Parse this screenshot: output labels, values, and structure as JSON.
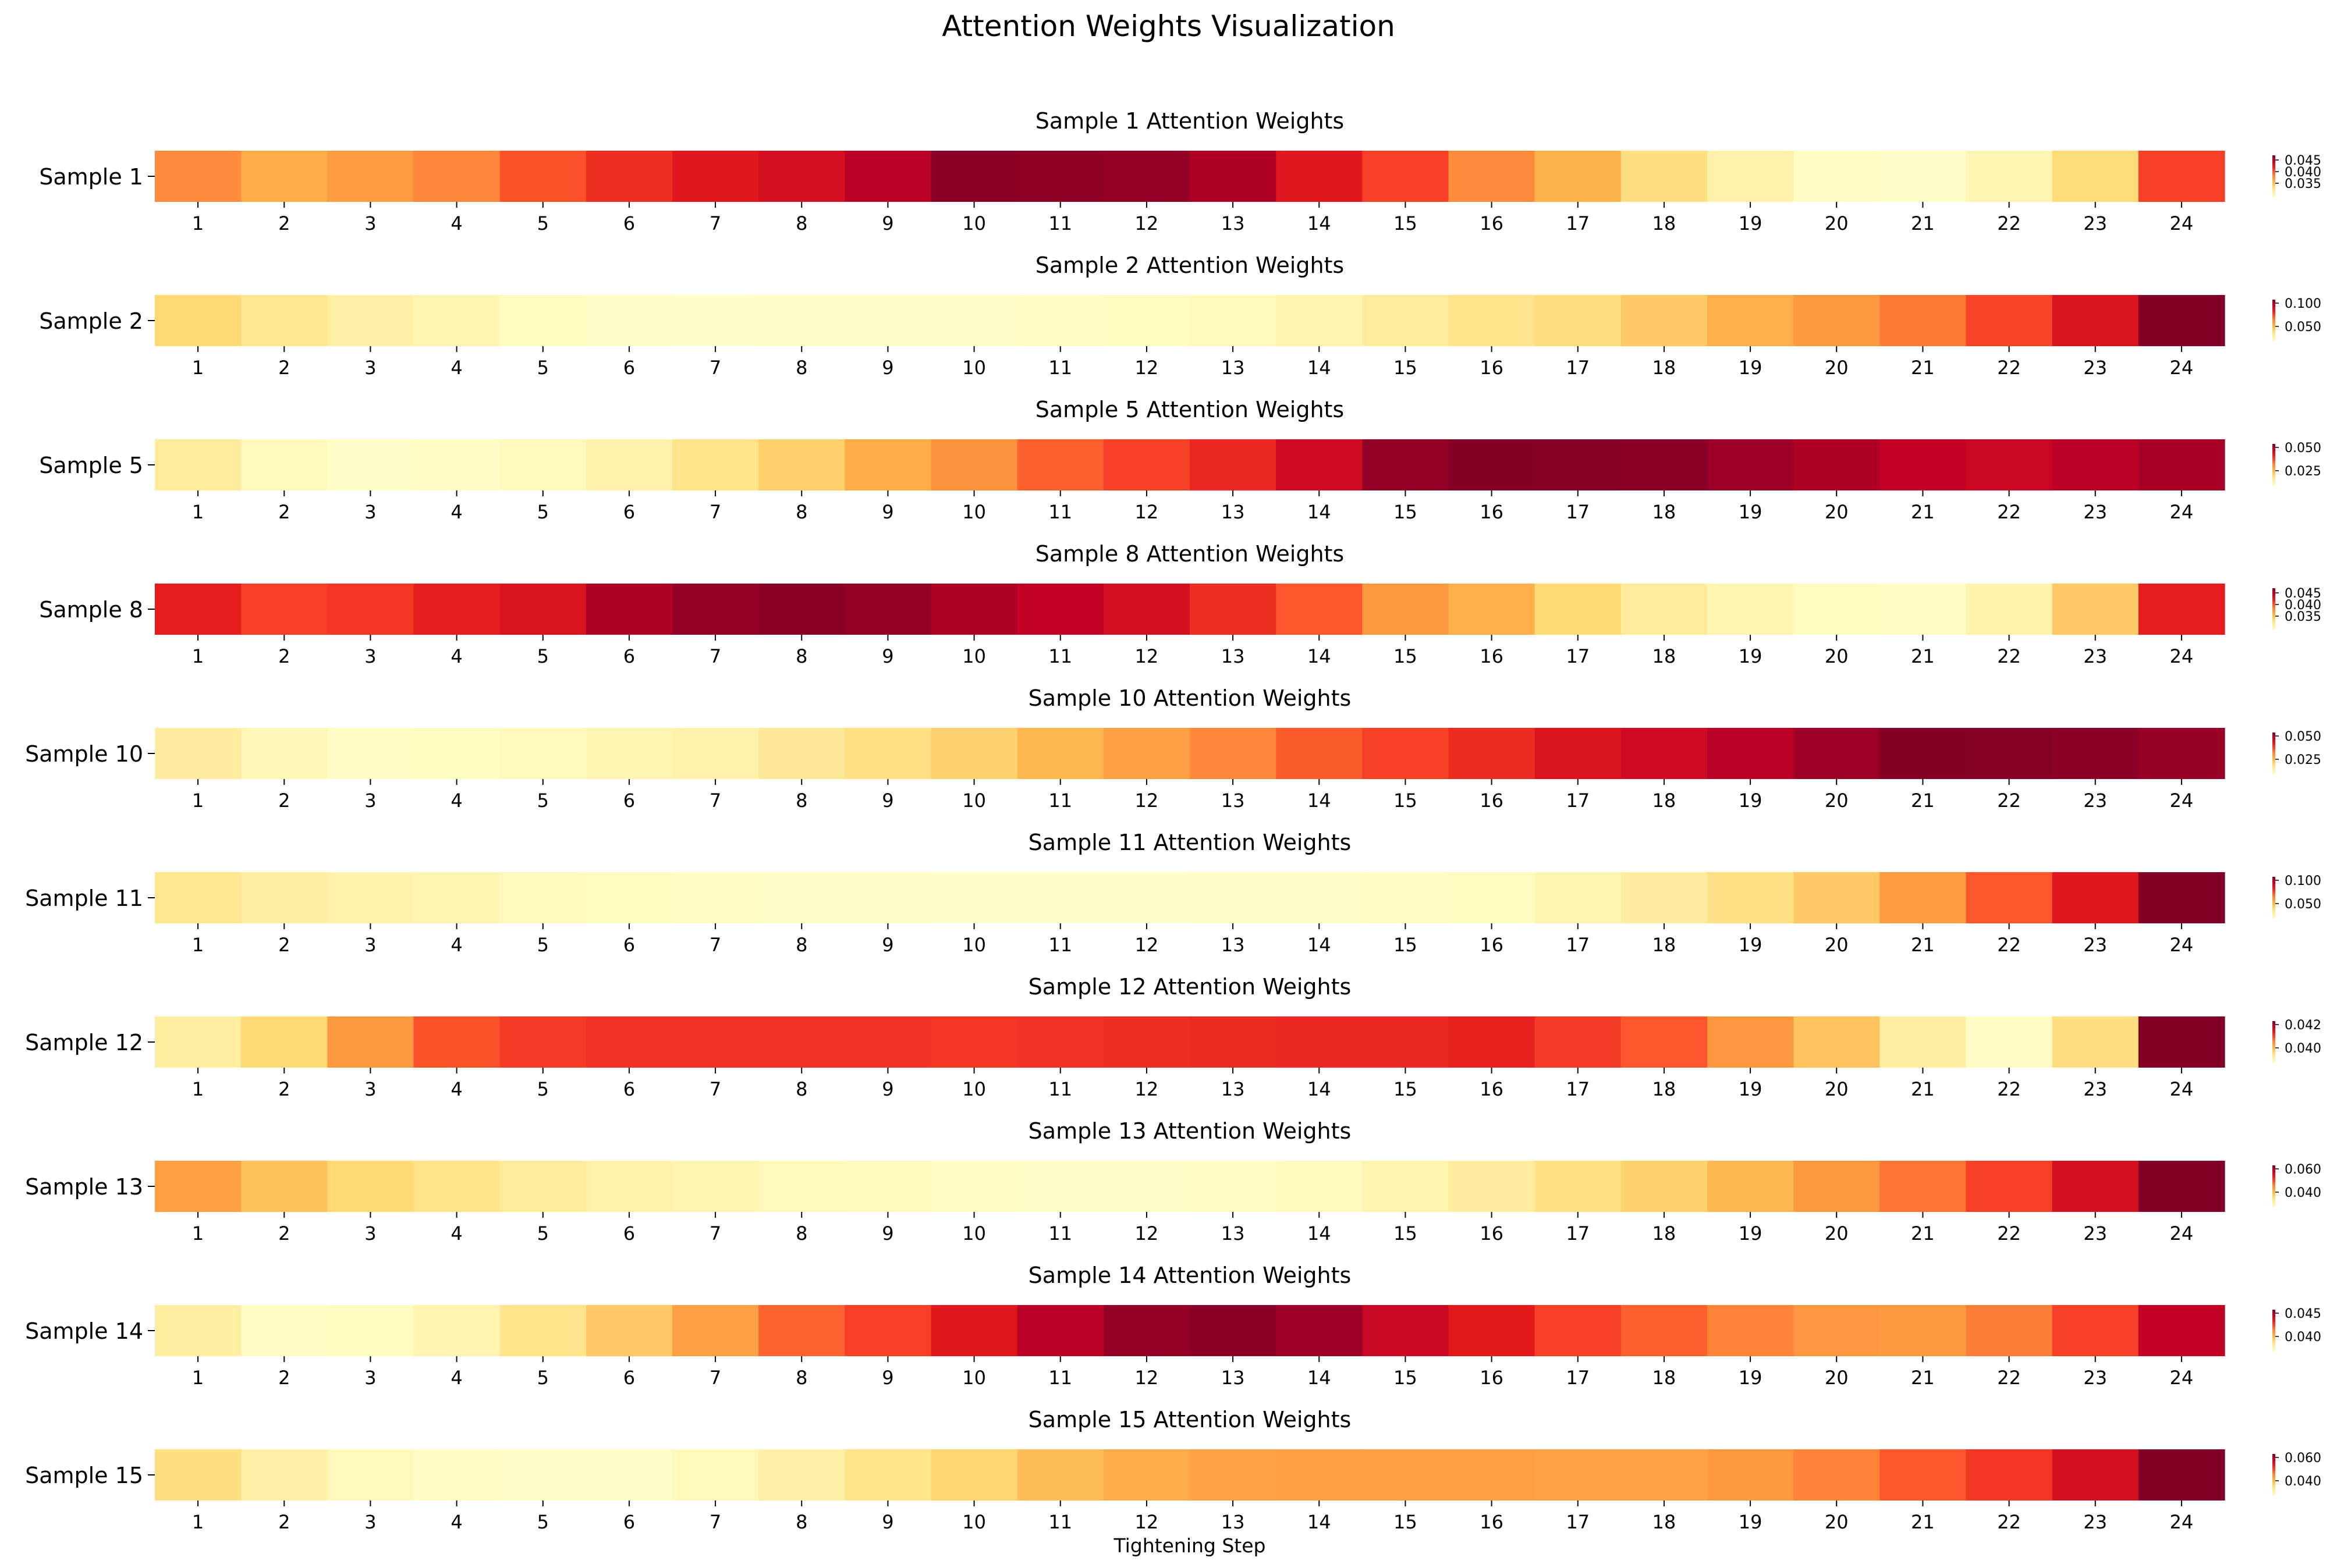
{
  "title": "Attention Weights Visualization",
  "chart_data": {
    "type": "heatmap",
    "title": "Attention Weights Visualization",
    "xlabel": "Tightening Step",
    "x_categories": [
      "1",
      "2",
      "3",
      "4",
      "5",
      "6",
      "7",
      "8",
      "9",
      "10",
      "11",
      "12",
      "13",
      "14",
      "15",
      "16",
      "17",
      "18",
      "19",
      "20",
      "21",
      "22",
      "23",
      "24"
    ],
    "colormap": "YlOrRd",
    "colorscale_stops": [
      "#ffffcc",
      "#ffeda0",
      "#fed976",
      "#feb24c",
      "#fd8d3c",
      "#fc4e2a",
      "#e31a1c",
      "#bd0026",
      "#800026"
    ],
    "rows": [
      {
        "label": "Sample 1",
        "subtitle": "Sample 1 Attention Weights",
        "intensity": [
          0.5,
          0.4,
          0.45,
          0.51,
          0.62,
          0.7,
          0.76,
          0.8,
          0.88,
          0.98,
          0.97,
          0.96,
          0.9,
          0.76,
          0.66,
          0.5,
          0.37,
          0.22,
          0.1,
          0.02,
          0.01,
          0.07,
          0.24,
          0.66
        ],
        "colorbar_ticks": [
          "0.045",
          "0.040",
          "0.035"
        ]
      },
      {
        "label": "Sample 2",
        "subtitle": "Sample 2 Attention Weights",
        "intensity": [
          0.25,
          0.16,
          0.11,
          0.07,
          0.03,
          0.01,
          0.0,
          0.01,
          0.01,
          0.01,
          0.02,
          0.03,
          0.05,
          0.08,
          0.14,
          0.18,
          0.23,
          0.3,
          0.39,
          0.46,
          0.54,
          0.65,
          0.78,
          1.0
        ],
        "colorbar_ticks": [
          "0.100",
          "0.050"
        ]
      },
      {
        "label": "Sample 5",
        "subtitle": "Sample 5 Attention Weights",
        "intensity": [
          0.14,
          0.05,
          0.01,
          0.02,
          0.04,
          0.1,
          0.19,
          0.28,
          0.4,
          0.48,
          0.59,
          0.66,
          0.72,
          0.82,
          0.96,
          1.0,
          0.99,
          0.98,
          0.94,
          0.9,
          0.86,
          0.84,
          0.88,
          0.92
        ],
        "colorbar_ticks": [
          "0.050",
          "0.025"
        ]
      },
      {
        "label": "Sample 8",
        "subtitle": "Sample 8 Attention Weights",
        "intensity": [
          0.74,
          0.66,
          0.68,
          0.74,
          0.78,
          0.9,
          0.96,
          0.98,
          0.96,
          0.9,
          0.86,
          0.8,
          0.7,
          0.61,
          0.46,
          0.38,
          0.25,
          0.14,
          0.07,
          0.03,
          0.02,
          0.09,
          0.3,
          0.74
        ],
        "colorbar_ticks": [
          "0.045",
          "0.040",
          "0.035"
        ]
      },
      {
        "label": "Sample 10",
        "subtitle": "Sample 10 Attention Weights",
        "intensity": [
          0.13,
          0.06,
          0.02,
          0.03,
          0.05,
          0.07,
          0.1,
          0.15,
          0.21,
          0.27,
          0.36,
          0.44,
          0.51,
          0.6,
          0.66,
          0.71,
          0.78,
          0.82,
          0.88,
          0.94,
          1.0,
          0.99,
          0.98,
          0.95
        ],
        "colorbar_ticks": [
          "0.050",
          "0.025"
        ]
      },
      {
        "label": "Sample 11",
        "subtitle": "Sample 11 Attention Weights",
        "intensity": [
          0.17,
          0.12,
          0.09,
          0.07,
          0.04,
          0.03,
          0.02,
          0.01,
          0.01,
          0.0,
          0.0,
          0.0,
          0.01,
          0.01,
          0.02,
          0.03,
          0.07,
          0.13,
          0.2,
          0.3,
          0.45,
          0.61,
          0.76,
          1.0
        ],
        "colorbar_ticks": [
          "0.100",
          "0.050"
        ]
      },
      {
        "label": "Sample 12",
        "subtitle": "Sample 12 Attention Weights",
        "intensity": [
          0.12,
          0.25,
          0.46,
          0.62,
          0.67,
          0.69,
          0.69,
          0.69,
          0.69,
          0.68,
          0.69,
          0.7,
          0.71,
          0.72,
          0.72,
          0.73,
          0.67,
          0.61,
          0.47,
          0.32,
          0.12,
          0.02,
          0.22,
          1.0
        ],
        "colorbar_ticks": [
          "0.042",
          "0.040"
        ]
      },
      {
        "label": "Sample 13",
        "subtitle": "Sample 13 Attention Weights",
        "intensity": [
          0.44,
          0.33,
          0.25,
          0.19,
          0.14,
          0.1,
          0.07,
          0.05,
          0.04,
          0.02,
          0.01,
          0.01,
          0.02,
          0.04,
          0.08,
          0.13,
          0.2,
          0.27,
          0.36,
          0.46,
          0.55,
          0.66,
          0.8,
          1.0
        ],
        "colorbar_ticks": [
          "0.060",
          "0.040"
        ]
      },
      {
        "label": "Sample 14",
        "subtitle": "Sample 14 Attention Weights",
        "intensity": [
          0.12,
          0.02,
          0.03,
          0.08,
          0.18,
          0.3,
          0.44,
          0.58,
          0.66,
          0.76,
          0.88,
          0.96,
          0.98,
          0.94,
          0.84,
          0.75,
          0.66,
          0.59,
          0.52,
          0.47,
          0.46,
          0.53,
          0.66,
          0.86
        ],
        "colorbar_ticks": [
          "0.045",
          "0.040"
        ]
      },
      {
        "label": "Sample 15",
        "subtitle": "Sample 15 Attention Weights",
        "intensity": [
          0.22,
          0.11,
          0.05,
          0.02,
          0.01,
          0.01,
          0.05,
          0.11,
          0.18,
          0.26,
          0.34,
          0.4,
          0.43,
          0.44,
          0.44,
          0.44,
          0.43,
          0.43,
          0.46,
          0.52,
          0.61,
          0.68,
          0.8,
          1.0
        ],
        "colorbar_ticks": [
          "0.060",
          "0.040"
        ]
      }
    ]
  }
}
